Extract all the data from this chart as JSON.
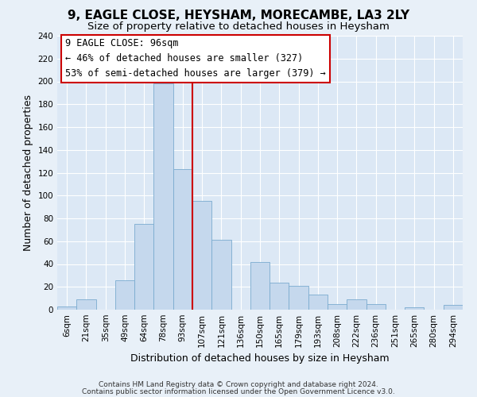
{
  "title": "9, EAGLE CLOSE, HEYSHAM, MORECAMBE, LA3 2LY",
  "subtitle": "Size of property relative to detached houses in Heysham",
  "xlabel": "Distribution of detached houses by size in Heysham",
  "ylabel": "Number of detached properties",
  "bar_color": "#c5d8ed",
  "bar_edge_color": "#7aabcf",
  "categories": [
    "6sqm",
    "21sqm",
    "35sqm",
    "49sqm",
    "64sqm",
    "78sqm",
    "93sqm",
    "107sqm",
    "121sqm",
    "136sqm",
    "150sqm",
    "165sqm",
    "179sqm",
    "193sqm",
    "208sqm",
    "222sqm",
    "236sqm",
    "251sqm",
    "265sqm",
    "280sqm",
    "294sqm"
  ],
  "values": [
    3,
    9,
    0,
    26,
    75,
    198,
    123,
    95,
    61,
    0,
    42,
    24,
    21,
    13,
    5,
    9,
    5,
    0,
    2,
    0,
    4
  ],
  "vline_x": 6.5,
  "vline_color": "#cc0000",
  "annotation_title": "9 EAGLE CLOSE: 96sqm",
  "annotation_line1": "← 46% of detached houses are smaller (327)",
  "annotation_line2": "53% of semi-detached houses are larger (379) →",
  "annotation_box_color": "#ffffff",
  "annotation_box_edge": "#cc0000",
  "ylim": [
    0,
    240
  ],
  "yticks": [
    0,
    20,
    40,
    60,
    80,
    100,
    120,
    140,
    160,
    180,
    200,
    220,
    240
  ],
  "footer1": "Contains HM Land Registry data © Crown copyright and database right 2024.",
  "footer2": "Contains public sector information licensed under the Open Government Licence v3.0.",
  "bg_color": "#e8f0f8",
  "plot_bg_color": "#dce8f5",
  "title_fontsize": 11,
  "subtitle_fontsize": 9.5,
  "tick_fontsize": 7.5,
  "label_fontsize": 9,
  "footer_fontsize": 6.5
}
